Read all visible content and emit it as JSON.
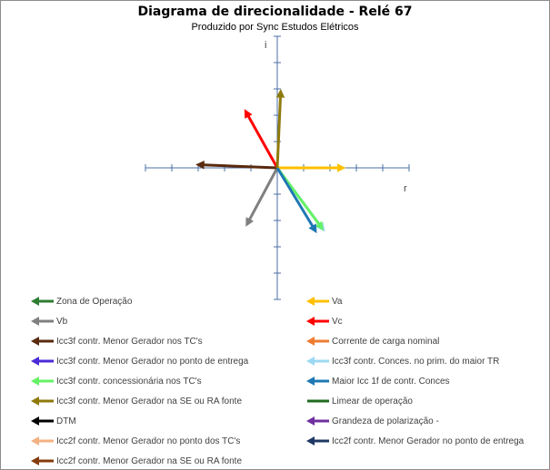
{
  "chart_data": {
    "type": "vector-phasor",
    "title": "Diagrama de direcionalidade - Relé 67",
    "subtitle": "Produzido por Sync Estudos Elétricos",
    "xlabel": "r",
    "ylabel": "i",
    "xlim": [
      -5,
      5
    ],
    "ylim": [
      -5,
      5
    ],
    "grid": false,
    "series": [
      {
        "name": "Zona de Operação",
        "color": "#2E7D32",
        "arrow": true,
        "points": [
          [
            0,
            0
          ],
          [
            0,
            0
          ]
        ]
      },
      {
        "name": "Va",
        "color": "#FFC000",
        "arrow": true,
        "points": [
          [
            0,
            0
          ],
          [
            2.5,
            0
          ]
        ]
      },
      {
        "name": "Vb",
        "color": "#808080",
        "arrow": true,
        "points": [
          [
            0,
            0
          ],
          [
            -1.15,
            -2.15
          ]
        ]
      },
      {
        "name": "Vc",
        "color": "#FF0000",
        "arrow": true,
        "points": [
          [
            0,
            0
          ],
          [
            -1.2,
            2.15
          ]
        ]
      },
      {
        "name": "Icc3f contr. Menor Gerador nos TC's",
        "color": "#5A2A0E",
        "arrow": true,
        "points": [
          [
            0,
            0
          ],
          [
            -3.0,
            0.12
          ]
        ]
      },
      {
        "name": "Corrente de carga nominal",
        "color": "#ED7D31",
        "arrow": true,
        "points": [
          [
            0,
            0
          ],
          [
            0,
            0
          ]
        ]
      },
      {
        "name": "Icc3f contr. Menor Gerador no ponto de entrega",
        "color": "#4B2BD6",
        "arrow": true,
        "points": [
          [
            0,
            0
          ],
          [
            0,
            0
          ]
        ]
      },
      {
        "name": "Icc3f contr. Conces. no prim. do maior TR",
        "color": "#9DD9F3",
        "arrow": true,
        "points": [
          [
            0,
            0
          ],
          [
            1.75,
            -2.35
          ]
        ]
      },
      {
        "name": "Icc3f contr. concessionária nos TC's",
        "color": "#66F266",
        "arrow": true,
        "points": [
          [
            0,
            0
          ],
          [
            1.7,
            -2.3
          ]
        ]
      },
      {
        "name": "Maior Icc 1f de contr. Conces",
        "color": "#1F78B4",
        "arrow": true,
        "points": [
          [
            0,
            0
          ],
          [
            1.45,
            -2.4
          ]
        ]
      },
      {
        "name": "Icc3f contr. Menor Gerador na SE ou RA fonte",
        "color": "#8F7A0C",
        "arrow": true,
        "points": [
          [
            0,
            0
          ],
          [
            0.13,
            2.9
          ]
        ]
      },
      {
        "name": "Limear de operação",
        "color": "#1F6B1F",
        "arrow": false,
        "points": [
          [
            0,
            0
          ],
          [
            0,
            0
          ]
        ]
      },
      {
        "name": "DTM",
        "color": "#000000",
        "arrow": true,
        "points": [
          [
            0,
            0
          ],
          [
            0,
            0
          ]
        ]
      },
      {
        "name": "Grandeza de polarização -",
        "color": "#7030A0",
        "arrow": true,
        "points": [
          [
            0,
            0
          ],
          [
            0,
            0
          ]
        ]
      },
      {
        "name": "Icc2f contr. Menor Gerador no ponto dos TC's",
        "color": "#F4B183",
        "arrow": true,
        "points": [
          [
            0,
            0
          ],
          [
            0,
            0
          ]
        ]
      },
      {
        "name": "Icc2f contr. Menor Gerador no ponto de entrega",
        "color": "#1F3864",
        "arrow": true,
        "points": [
          [
            0,
            0
          ],
          [
            0,
            0
          ]
        ]
      },
      {
        "name": "Icc2f contr. Menor Gerador na SE ou RA fonte",
        "color": "#843C0C",
        "arrow": true,
        "points": [
          [
            0,
            0
          ],
          [
            0,
            0
          ]
        ]
      }
    ]
  }
}
